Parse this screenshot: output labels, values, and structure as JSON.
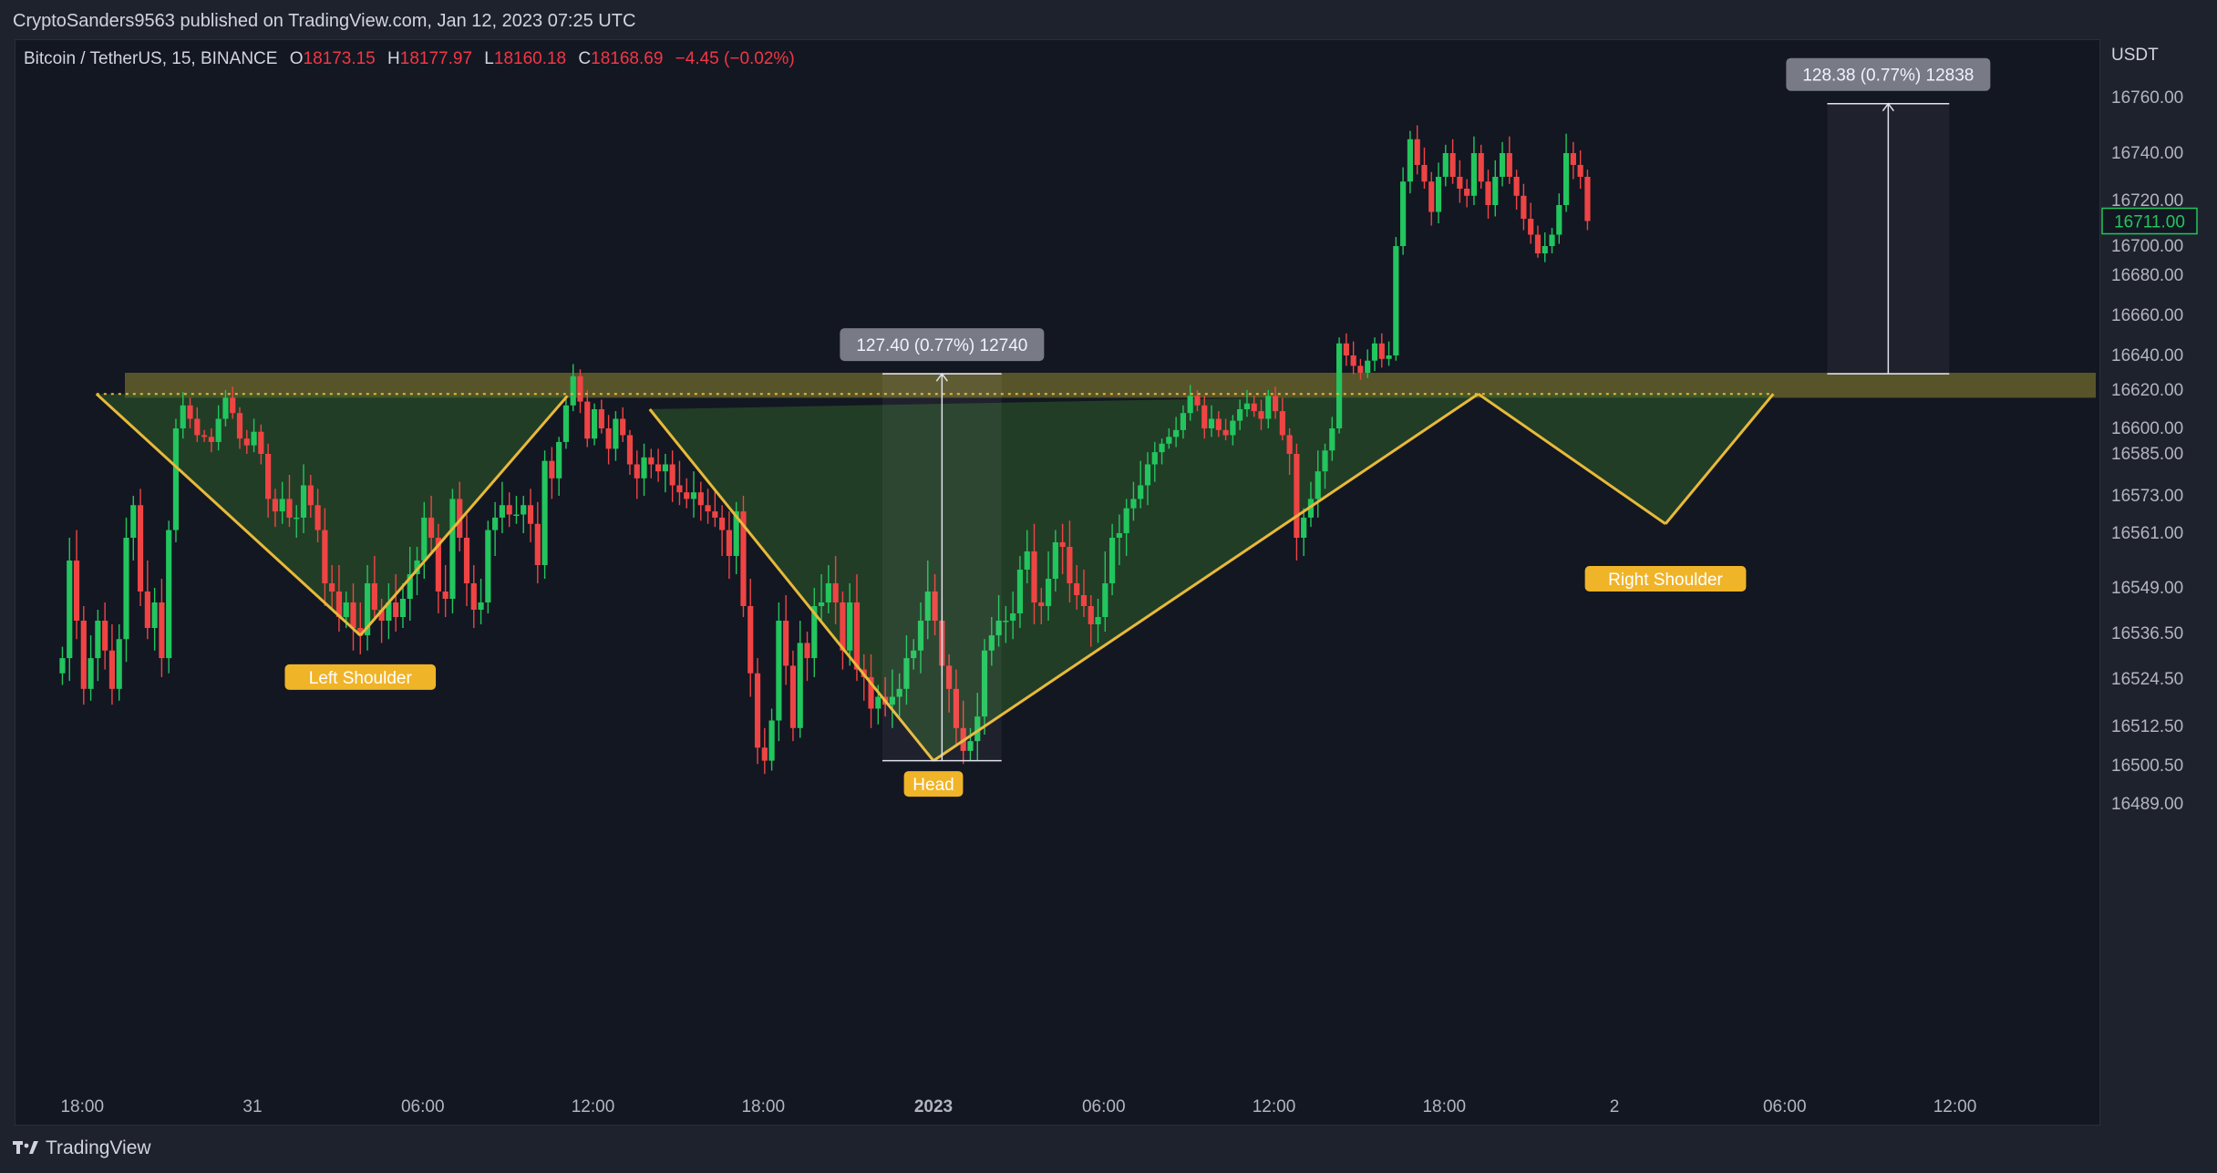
{
  "header": {
    "published": "CryptoSanders9563 published on TradingView.com, Jan 12, 2023 07:25 UTC"
  },
  "legend": {
    "symbol": "Bitcoin / TetherUS, 15, BINANCE",
    "o_label": "O",
    "o_value": "18173.15",
    "h_label": "H",
    "h_value": "18177.97",
    "l_label": "L",
    "l_value": "18160.18",
    "c_label": "C",
    "c_value": "18168.69",
    "change": "−4.45 (−0.02%)"
  },
  "footer": {
    "brand": "TradingView"
  },
  "colors": {
    "up": "#22c55e",
    "down": "#ef4444",
    "pattern_line": "#e8b93a",
    "zone": "#6f6a2e",
    "fill": "#2f5c2a",
    "label_bg": "#f0b429"
  },
  "chart_data": {
    "type": "candlestick",
    "currency": "USDT",
    "last_price": "16711.00",
    "y_ticks": [
      "16760.00",
      "16740.00",
      "16720.00",
      "16700.00",
      "16680.00",
      "16660.00",
      "16640.00",
      "16620.00",
      "16600.00",
      "16585.00",
      "16573.00",
      "16561.00",
      "16549.00",
      "16536.50",
      "16524.50",
      "16512.50",
      "16500.50",
      "16489.00"
    ],
    "x_ticks": [
      {
        "label": "18:00",
        "time": -6,
        "bold": false
      },
      {
        "label": "31",
        "time": 0,
        "bold": false
      },
      {
        "label": "06:00",
        "time": 6,
        "bold": false
      },
      {
        "label": "12:00",
        "time": 12,
        "bold": false
      },
      {
        "label": "18:00",
        "time": 18,
        "bold": false
      },
      {
        "label": "2023",
        "time": 24,
        "bold": true
      },
      {
        "label": "06:00",
        "time": 30,
        "bold": false
      },
      {
        "label": "12:00",
        "time": 36,
        "bold": false
      },
      {
        "label": "18:00",
        "time": 42,
        "bold": false
      },
      {
        "label": "2",
        "time": 48,
        "bold": false
      },
      {
        "label": "06:00",
        "time": 54,
        "bold": false
      },
      {
        "label": "12:00",
        "time": 60,
        "bold": false
      }
    ],
    "closes": [
      16530,
      16555,
      16540,
      16522,
      16530,
      16540,
      16532,
      16522,
      16535,
      16560,
      16570,
      16548,
      16538,
      16545,
      16530,
      16562,
      16600,
      16612,
      16605,
      16596,
      16595,
      16592,
      16605,
      16616,
      16608,
      16594,
      16590,
      16598,
      16585,
      16572,
      16568,
      16572,
      16566,
      16566,
      16576,
      16570,
      16562,
      16550,
      16548,
      16541,
      16545,
      16538,
      16536,
      16550,
      16543,
      16540,
      16545,
      16541,
      16546,
      16552,
      16555,
      16566,
      16560,
      16548,
      16546,
      16572,
      16560,
      16550,
      16543,
      16545,
      16562,
      16566,
      16570,
      16567,
      16567,
      16570,
      16564,
      16554,
      16583,
      16578,
      16592,
      16612,
      16628,
      16614,
      16594,
      16610,
      16600,
      16588,
      16605,
      16596,
      16582,
      16578,
      16584,
      16582,
      16580,
      16582,
      16576,
      16574,
      16572,
      16574,
      16570,
      16568,
      16566,
      16562,
      16556,
      16568,
      16544,
      16526,
      16506,
      16502,
      16514,
      16540,
      16528,
      16512,
      16534,
      16530,
      16544,
      16545,
      16550,
      16545,
      16532,
      16545,
      16527,
      16525,
      16517,
      16520,
      16518,
      16520,
      16522,
      16530,
      16532,
      16540,
      16548,
      16540,
      16528,
      16522,
      16512,
      16505,
      16508,
      16515,
      16532,
      16536,
      16540,
      16540,
      16542,
      16553,
      16557,
      16545,
      16544,
      16551,
      16559,
      16558,
      16550,
      16547,
      16544,
      16539,
      16541,
      16550,
      16560,
      16561,
      16569,
      16572,
      16576,
      16582,
      16586,
      16591,
      16595,
      16599,
      16608,
      16617,
      16612,
      16600,
      16605,
      16599,
      16596,
      16604,
      16610,
      16613,
      16609,
      16605,
      16617,
      16609,
      16596,
      16585,
      16560,
      16566,
      16572,
      16580,
      16587,
      16600,
      16646,
      16640,
      16634,
      16630,
      16637,
      16646,
      16638,
      16640,
      16700,
      16728,
      16745,
      16735,
      16728,
      16715,
      16730,
      16740,
      16730,
      16725,
      16722,
      16740,
      16728,
      16718,
      16730,
      16740,
      16730,
      16722,
      16712,
      16705,
      16695,
      16700,
      16705,
      16718,
      16740,
      16735,
      16730,
      16711
    ],
    "pattern": {
      "labels": [
        "Left Shoulder",
        "Head",
        "Right Shoulder"
      ],
      "neckline": 16618,
      "points": [
        [
          -5.5,
          16618
        ],
        [
          3.8,
          16536
        ],
        [
          11.1,
          16617
        ],
        [
          14,
          16610
        ],
        [
          24,
          16502
        ],
        [
          43.2,
          16618
        ],
        [
          49.8,
          16564
        ],
        [
          53.6,
          16618
        ]
      ],
      "resistance_zone": [
        16616,
        16630
      ]
    },
    "measurements": [
      {
        "label": "127.40 (0.77%) 12740",
        "from": 16502,
        "to": 16629.4,
        "time_start": 22.2,
        "time_end": 26.4
      },
      {
        "label": "128.38 (0.77%) 12838",
        "from": 16629.4,
        "to": 16757.8,
        "time_start": 55.5,
        "time_end": 59.8
      }
    ],
    "grid": false
  }
}
